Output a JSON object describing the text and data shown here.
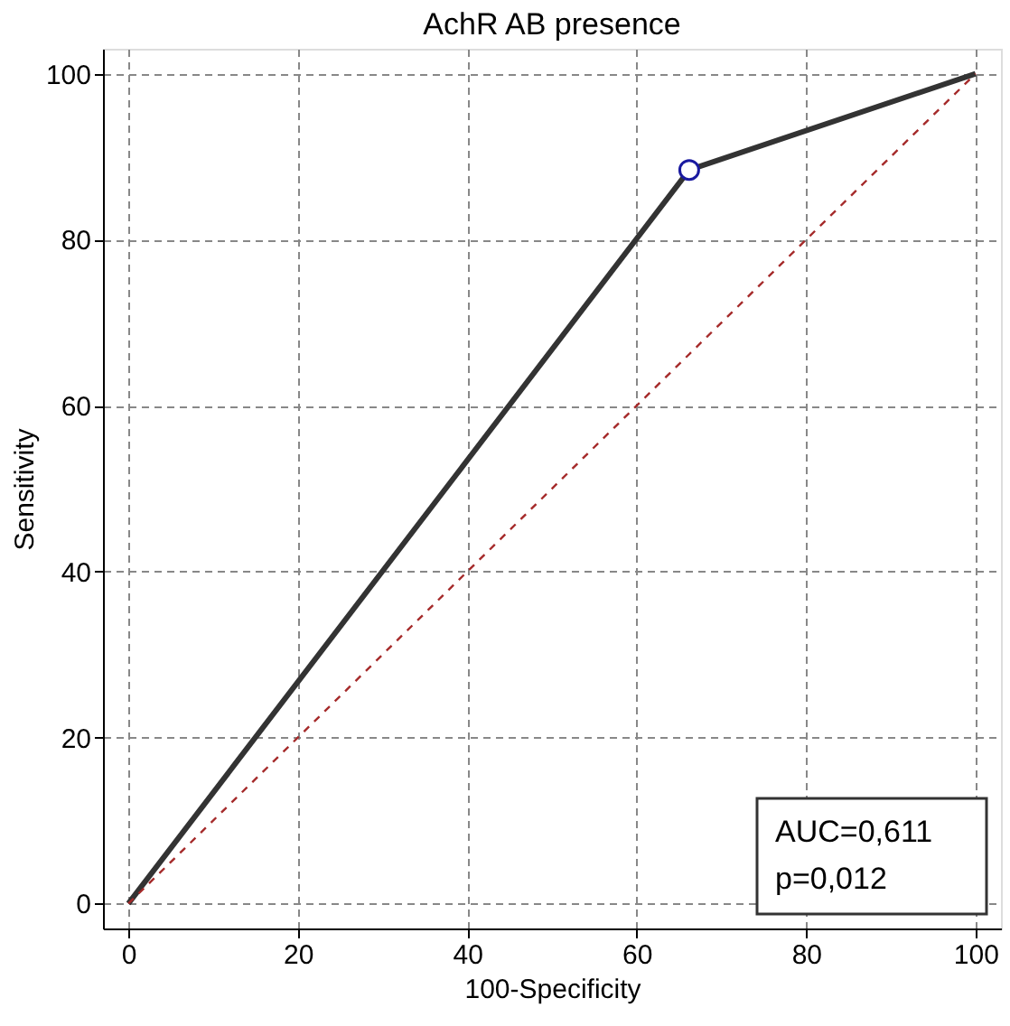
{
  "chart_data": {
    "type": "line",
    "title": "AchR AB presence",
    "xlabel": "100-Specificity",
    "ylabel": "Sensitivity",
    "xlim": [
      -3,
      103
    ],
    "ylim": [
      -3,
      103
    ],
    "xticks": [
      0,
      20,
      40,
      60,
      80,
      100
    ],
    "yticks": [
      0,
      20,
      40,
      60,
      80,
      100
    ],
    "grid": true,
    "series": [
      {
        "type": "line",
        "color": "#333333",
        "x": [
          0,
          66.2,
          100
        ],
        "values": [
          0,
          88.4,
          100
        ],
        "line_style": "solid",
        "marker": "none"
      },
      {
        "type": "scatter",
        "color": "#1a1aa0",
        "x": [
          66.2
        ],
        "values": [
          88.4
        ],
        "marker": "circle"
      },
      {
        "type": "line",
        "color": "#a52a2a",
        "x": [
          0,
          100
        ],
        "values": [
          0,
          100
        ],
        "line_style": "dashed",
        "marker": "none"
      }
    ],
    "annotations": [
      "AUC=0,611",
      "p=0,012"
    ]
  }
}
